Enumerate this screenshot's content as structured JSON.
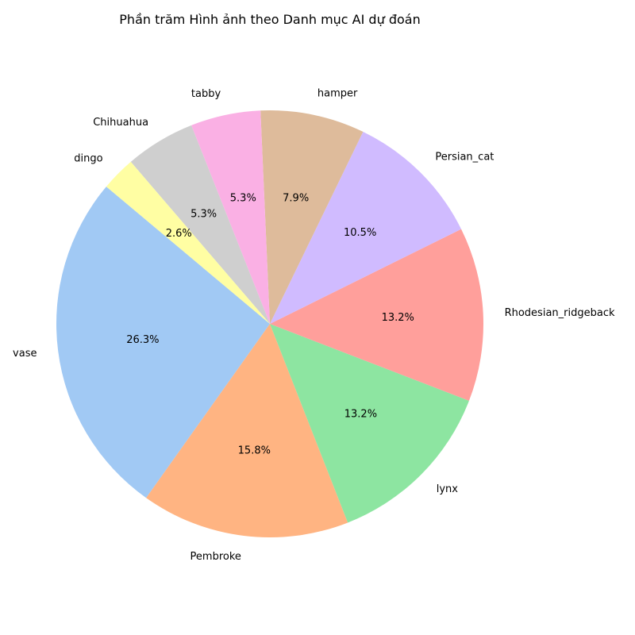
{
  "chart_data": {
    "type": "pie",
    "title": "Phần trăm Hình ảnh theo Danh mục AI dự đoán",
    "start_angle_deg": 140,
    "direction": "counterclockwise",
    "slices": [
      {
        "label": "vase",
        "value": 26.3,
        "display": "26.3%",
        "color": "#a1c9f4"
      },
      {
        "label": "Pembroke",
        "value": 15.8,
        "display": "15.8%",
        "color": "#ffb482"
      },
      {
        "label": "lynx",
        "value": 13.2,
        "display": "13.2%",
        "color": "#8de5a1"
      },
      {
        "label": "Rhodesian_ridgeback",
        "value": 13.2,
        "display": "13.2%",
        "color": "#ff9f9b"
      },
      {
        "label": "Persian_cat",
        "value": 10.5,
        "display": "10.5%",
        "color": "#d0bbff"
      },
      {
        "label": "hamper",
        "value": 7.9,
        "display": "7.9%",
        "color": "#debb9b"
      },
      {
        "label": "tabby",
        "value": 5.3,
        "display": "5.3%",
        "color": "#fab0e4"
      },
      {
        "label": "Chihuahua",
        "value": 5.3,
        "display": "5.3%",
        "color": "#cfcfcf"
      },
      {
        "label": "dingo",
        "value": 2.6,
        "display": "2.6%",
        "color": "#fffea3"
      }
    ]
  }
}
